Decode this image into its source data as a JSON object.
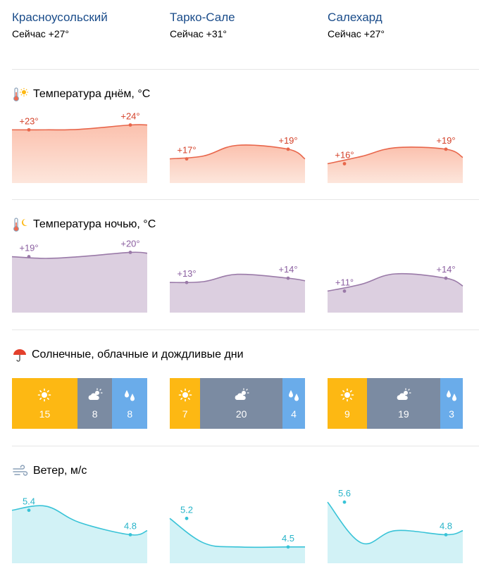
{
  "cities": [
    {
      "name": "Красноусольский",
      "now": "Сейчас +27°"
    },
    {
      "name": "Тарко-Сале",
      "now": "Сейчас +31°"
    },
    {
      "name": "Салехард",
      "now": "Сейчас +27°"
    }
  ],
  "sections": {
    "day_temp": "Температура днём, °C",
    "night_temp": "Температура ночью, °C",
    "days": "Солнечные, облачные и дождливые дни",
    "wind": "Ветер, м/с"
  },
  "colors": {
    "day_line": "#e8664b",
    "day_fill_top": "#fbc1ae",
    "day_fill_bottom": "#fde6dc",
    "day_label": "#d4422a",
    "night_line": "#9a7aa8",
    "night_fill": "#dccfe0",
    "night_label": "#8b5fa0",
    "wind_line": "#38c3d7",
    "wind_fill": "#d2f2f6",
    "wind_label": "#27b4c9",
    "sunny": "#fdb813",
    "cloudy": "#7b8ba2",
    "rainy": "#6aacea"
  },
  "icons": {
    "day_temp": [
      "thermometer-icon",
      "sun-icon"
    ],
    "night_temp": [
      "thermometer-icon",
      "moon-icon"
    ],
    "days": "umbrella-icon",
    "wind": "wind-icon",
    "days_segments": [
      "sun-icon",
      "partly-cloudy-icon",
      "raindrops-icon"
    ]
  },
  "chart_data": [
    {
      "type": "area",
      "title": "Температура днём, °C",
      "city": "Красноусольский",
      "labels": [
        "+23°",
        "+24°"
      ],
      "label_values": [
        23,
        24
      ],
      "series": [
        23,
        23,
        23.1,
        24,
        24
      ]
    },
    {
      "type": "area",
      "title": "Температура днём, °C",
      "city": "Тарко-Сале",
      "labels": [
        "+17°",
        "+19°"
      ],
      "label_values": [
        17,
        19
      ],
      "series": [
        17,
        17.6,
        19.8,
        19,
        17
      ]
    },
    {
      "type": "area",
      "title": "Температура днём, °C",
      "city": "Салехард",
      "labels": [
        "+16°",
        "+19°"
      ],
      "label_values": [
        16,
        19
      ],
      "series": [
        16,
        17.5,
        19.3,
        19,
        17.3
      ]
    },
    {
      "type": "area",
      "title": "Температура ночью, °C",
      "city": "Красноусольский",
      "labels": [
        "+19°",
        "+20°"
      ],
      "label_values": [
        19,
        20
      ],
      "series": [
        19,
        18.6,
        19,
        20,
        19.8
      ]
    },
    {
      "type": "area",
      "title": "Температура ночью, °C",
      "city": "Тарко-Сале",
      "labels": [
        "+13°",
        "+14°"
      ],
      "label_values": [
        13,
        14
      ],
      "series": [
        13,
        13.2,
        14.9,
        14,
        13.4
      ]
    },
    {
      "type": "area",
      "title": "Температура ночью, °C",
      "city": "Салехард",
      "labels": [
        "+11°",
        "+14°"
      ],
      "label_values": [
        11,
        14
      ],
      "series": [
        11,
        12.6,
        15,
        14,
        12.2
      ]
    },
    {
      "type": "table",
      "title": "Солнечные, облачные и дождливые дни",
      "city": "Красноусольский",
      "categories": [
        "sunny",
        "cloudy",
        "rainy"
      ],
      "values": [
        15,
        8,
        8
      ]
    },
    {
      "type": "table",
      "title": "Солнечные, облачные и дождливые дни",
      "city": "Тарко-Сале",
      "categories": [
        "sunny",
        "cloudy",
        "rainy"
      ],
      "values": [
        7,
        20,
        4
      ]
    },
    {
      "type": "table",
      "title": "Солнечные, облачные и дождливые дни",
      "city": "Салехард",
      "categories": [
        "sunny",
        "cloudy",
        "rainy"
      ],
      "values": [
        9,
        19,
        3
      ]
    },
    {
      "type": "area",
      "title": "Ветер, м/с",
      "city": "Красноусольский",
      "labels": [
        "5.4",
        "4.8"
      ],
      "label_values": [
        5.4,
        4.8
      ],
      "series": [
        5.4,
        5.5,
        5.1,
        4.8,
        4.9
      ]
    },
    {
      "type": "area",
      "title": "Ветер, м/с",
      "city": "Тарко-Сале",
      "labels": [
        "5.2",
        "4.5"
      ],
      "label_values": [
        5.2,
        4.5
      ],
      "series": [
        5.2,
        4.6,
        4.5,
        4.5,
        4.5
      ]
    },
    {
      "type": "area",
      "title": "Ветер, м/с",
      "city": "Салехард",
      "labels": [
        "5.6",
        "4.8"
      ],
      "label_values": [
        5.6,
        4.8
      ],
      "series": [
        5.6,
        4.6,
        4.9,
        4.8,
        4.9
      ]
    }
  ]
}
